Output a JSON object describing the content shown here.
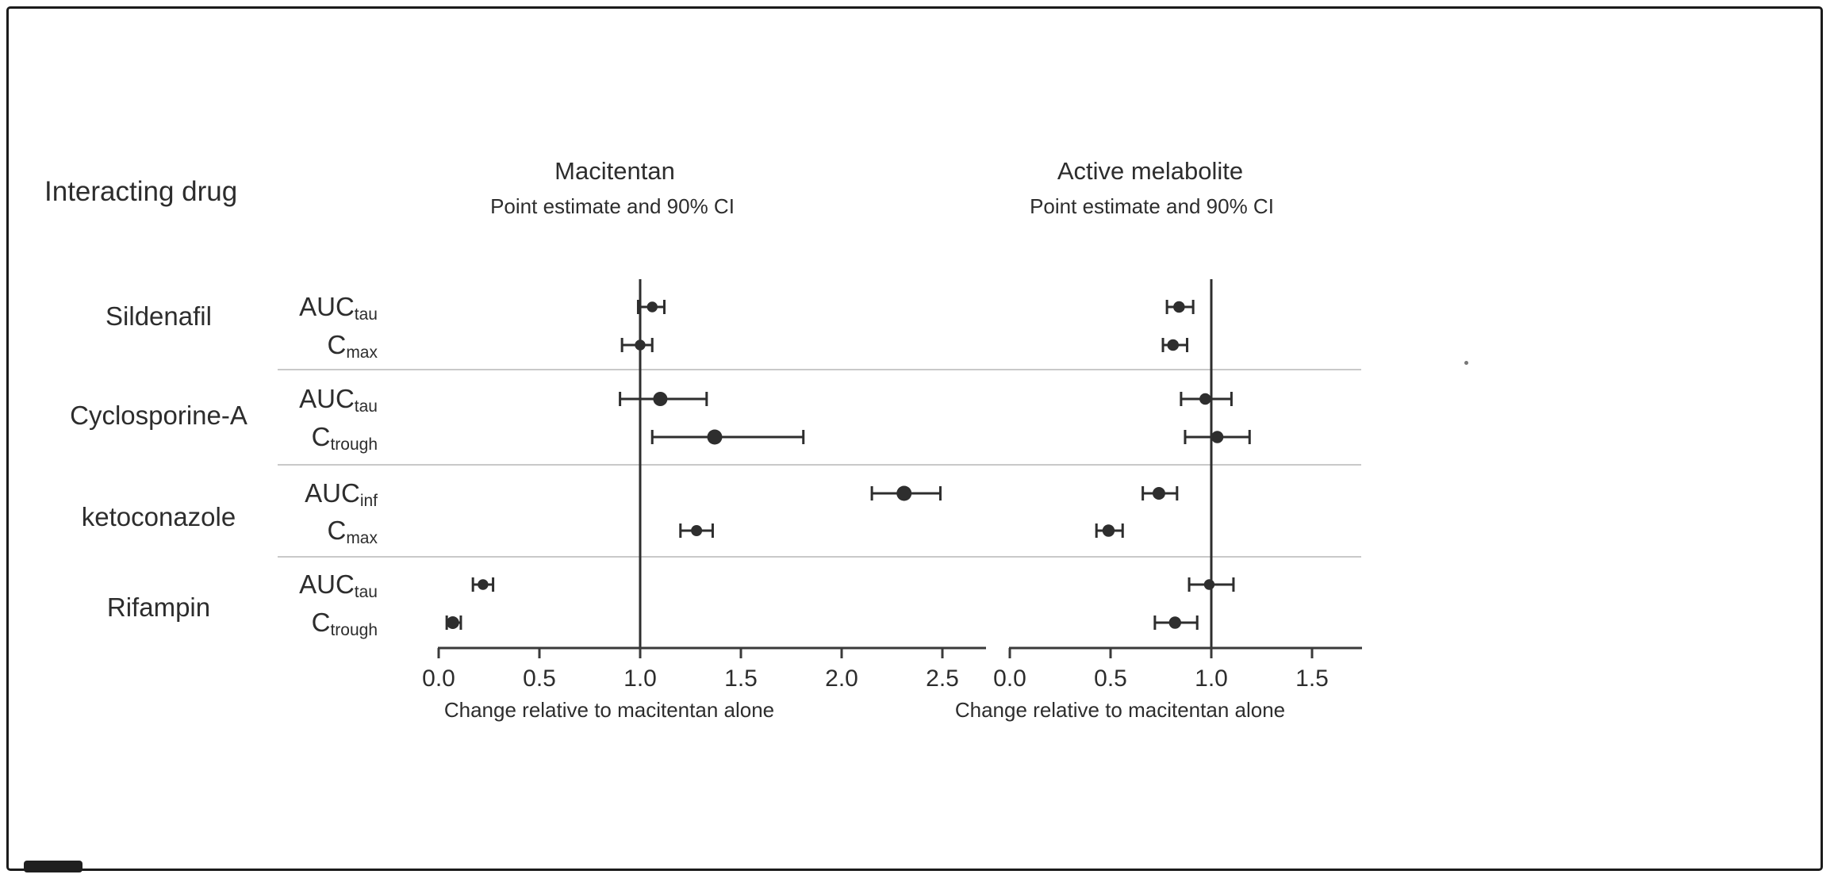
{
  "chart_data": {
    "type": "forest",
    "row_header": "Interacting drug",
    "reference_value": 1.0,
    "panels": [
      {
        "key": "macitentan",
        "title": "Macitentan",
        "subtitle": "Point estimate and 90% CI",
        "xlabel": "Change relative to macitentan alone",
        "xticks": [
          0.0,
          0.5,
          1.0,
          1.5,
          2.0,
          2.5
        ],
        "xlim": [
          0.0,
          2.72
        ],
        "reference_line": 1.0
      },
      {
        "key": "metabolite",
        "title": "Active melabolite",
        "subtitle": "Point estimate and 90% CI",
        "xlabel": "Change relative to macitentan alone",
        "xticks": [
          0.0,
          0.5,
          1.0,
          1.5
        ],
        "xlim": [
          0.0,
          1.75
        ],
        "reference_line": 1.0
      }
    ],
    "groups": [
      {
        "drug": "Sildenafil",
        "rows": [
          {
            "param": "AUC",
            "sub": "tau",
            "macitentan": {
              "est": 1.06,
              "lo": 0.99,
              "hi": 1.12,
              "r": 6.7
            },
            "metabolite": {
              "est": 0.84,
              "lo": 0.78,
              "hi": 0.91,
              "r": 7.3
            }
          },
          {
            "param": "C",
            "sub": "max",
            "macitentan": {
              "est": 1.0,
              "lo": 0.91,
              "hi": 1.06,
              "r": 6.7
            },
            "metabolite": {
              "est": 0.81,
              "lo": 0.76,
              "hi": 0.88,
              "r": 7.3
            }
          }
        ]
      },
      {
        "drug": "Cyclosporine-A",
        "rows": [
          {
            "param": "AUC",
            "sub": "tau",
            "macitentan": {
              "est": 1.1,
              "lo": 0.9,
              "hi": 1.33,
              "r": 9.0
            },
            "metabolite": {
              "est": 0.97,
              "lo": 0.85,
              "hi": 1.1,
              "r": 7.3
            }
          },
          {
            "param": "C",
            "sub": "trough",
            "macitentan": {
              "est": 1.37,
              "lo": 1.06,
              "hi": 1.81,
              "r": 9.5
            },
            "metabolite": {
              "est": 1.03,
              "lo": 0.87,
              "hi": 1.19,
              "r": 7.7
            }
          }
        ]
      },
      {
        "drug": "ketoconazole",
        "rows": [
          {
            "param": "AUC",
            "sub": "inf",
            "macitentan": {
              "est": 2.31,
              "lo": 2.15,
              "hi": 2.49,
              "r": 9.5
            },
            "metabolite": {
              "est": 0.74,
              "lo": 0.66,
              "hi": 0.83,
              "r": 8.0
            }
          },
          {
            "param": "C",
            "sub": "max",
            "macitentan": {
              "est": 1.28,
              "lo": 1.2,
              "hi": 1.36,
              "r": 7.0
            },
            "metabolite": {
              "est": 0.49,
              "lo": 0.43,
              "hi": 0.56,
              "r": 7.7
            }
          }
        ]
      },
      {
        "drug": "Rifampin",
        "rows": [
          {
            "param": "AUC",
            "sub": "tau",
            "macitentan": {
              "est": 0.22,
              "lo": 0.17,
              "hi": 0.27,
              "r": 6.7
            },
            "metabolite": {
              "est": 0.99,
              "lo": 0.89,
              "hi": 1.11,
              "r": 6.7
            }
          },
          {
            "param": "C",
            "sub": "trough",
            "macitentan": {
              "est": 0.07,
              "lo": 0.04,
              "hi": 0.11,
              "r": 8.0
            },
            "metabolite": {
              "est": 0.82,
              "lo": 0.72,
              "hi": 0.93,
              "r": 7.7
            }
          }
        ]
      }
    ],
    "colors": {
      "marker": "#2e2e2e",
      "axis": "#3a3a3a",
      "separator": "#c9c9c9",
      "frame": "#1b1b1b",
      "background": "#ffffff"
    }
  }
}
